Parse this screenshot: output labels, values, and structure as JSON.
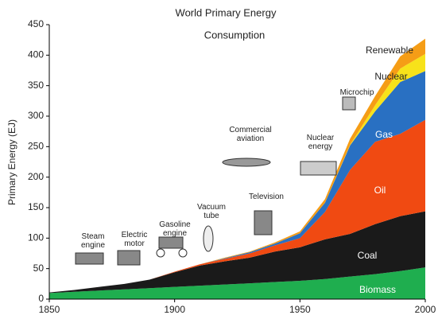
{
  "chart_data": {
    "type": "stacked-area",
    "title": "World Primary Energy",
    "subtitle": "Consumption",
    "y_label": "Primary Energy (EJ)",
    "x": [
      1850,
      1860,
      1870,
      1880,
      1890,
      1900,
      1910,
      1920,
      1930,
      1940,
      1950,
      1960,
      1970,
      1980,
      1990,
      2000
    ],
    "series": [
      {
        "name": "Biomass",
        "color": "#1fae4f",
        "values": [
          10,
          12,
          14,
          16,
          18,
          20,
          22,
          24,
          26,
          28,
          30,
          33,
          37,
          41,
          46,
          52
        ]
      },
      {
        "name": "Coal",
        "color": "#1a1a1a",
        "values": [
          1,
          3,
          6,
          9,
          14,
          24,
          33,
          38,
          42,
          50,
          55,
          65,
          70,
          82,
          90,
          92
        ]
      },
      {
        "name": "Oil",
        "color": "#f04a12",
        "values": [
          0,
          0,
          0,
          0,
          0,
          1,
          2,
          4,
          7,
          10,
          15,
          45,
          105,
          135,
          135,
          150
        ]
      },
      {
        "name": "Gas",
        "color": "#2970c2",
        "values": [
          0,
          0,
          0,
          0,
          0,
          0,
          0,
          1,
          2,
          3,
          8,
          15,
          40,
          50,
          85,
          80
        ]
      },
      {
        "name": "Nuclear",
        "color": "#f7e21a",
        "values": [
          0,
          0,
          0,
          0,
          0,
          0,
          0,
          0,
          0,
          0,
          0,
          0,
          1,
          10,
          22,
          28
        ]
      },
      {
        "name": "Renewable",
        "color": "#f59d16",
        "values": [
          0,
          0,
          0,
          0,
          0,
          0,
          0,
          1,
          1,
          2,
          3,
          6,
          10,
          15,
          20,
          25
        ]
      }
    ],
    "annotations": [
      "Steam engine",
      "Electric motor",
      "Gasoline engine",
      "Vacuum tube",
      "Commercial aviation",
      "Television",
      "Nuclear energy",
      "Microchip"
    ],
    "xlim": [
      1850,
      2000
    ],
    "xticks": [
      1850,
      1900,
      1950,
      2000
    ],
    "ylim": [
      0,
      450
    ],
    "yticks": [
      0,
      50,
      100,
      150,
      200,
      250,
      300,
      350,
      400,
      450
    ],
    "grid": false
  }
}
